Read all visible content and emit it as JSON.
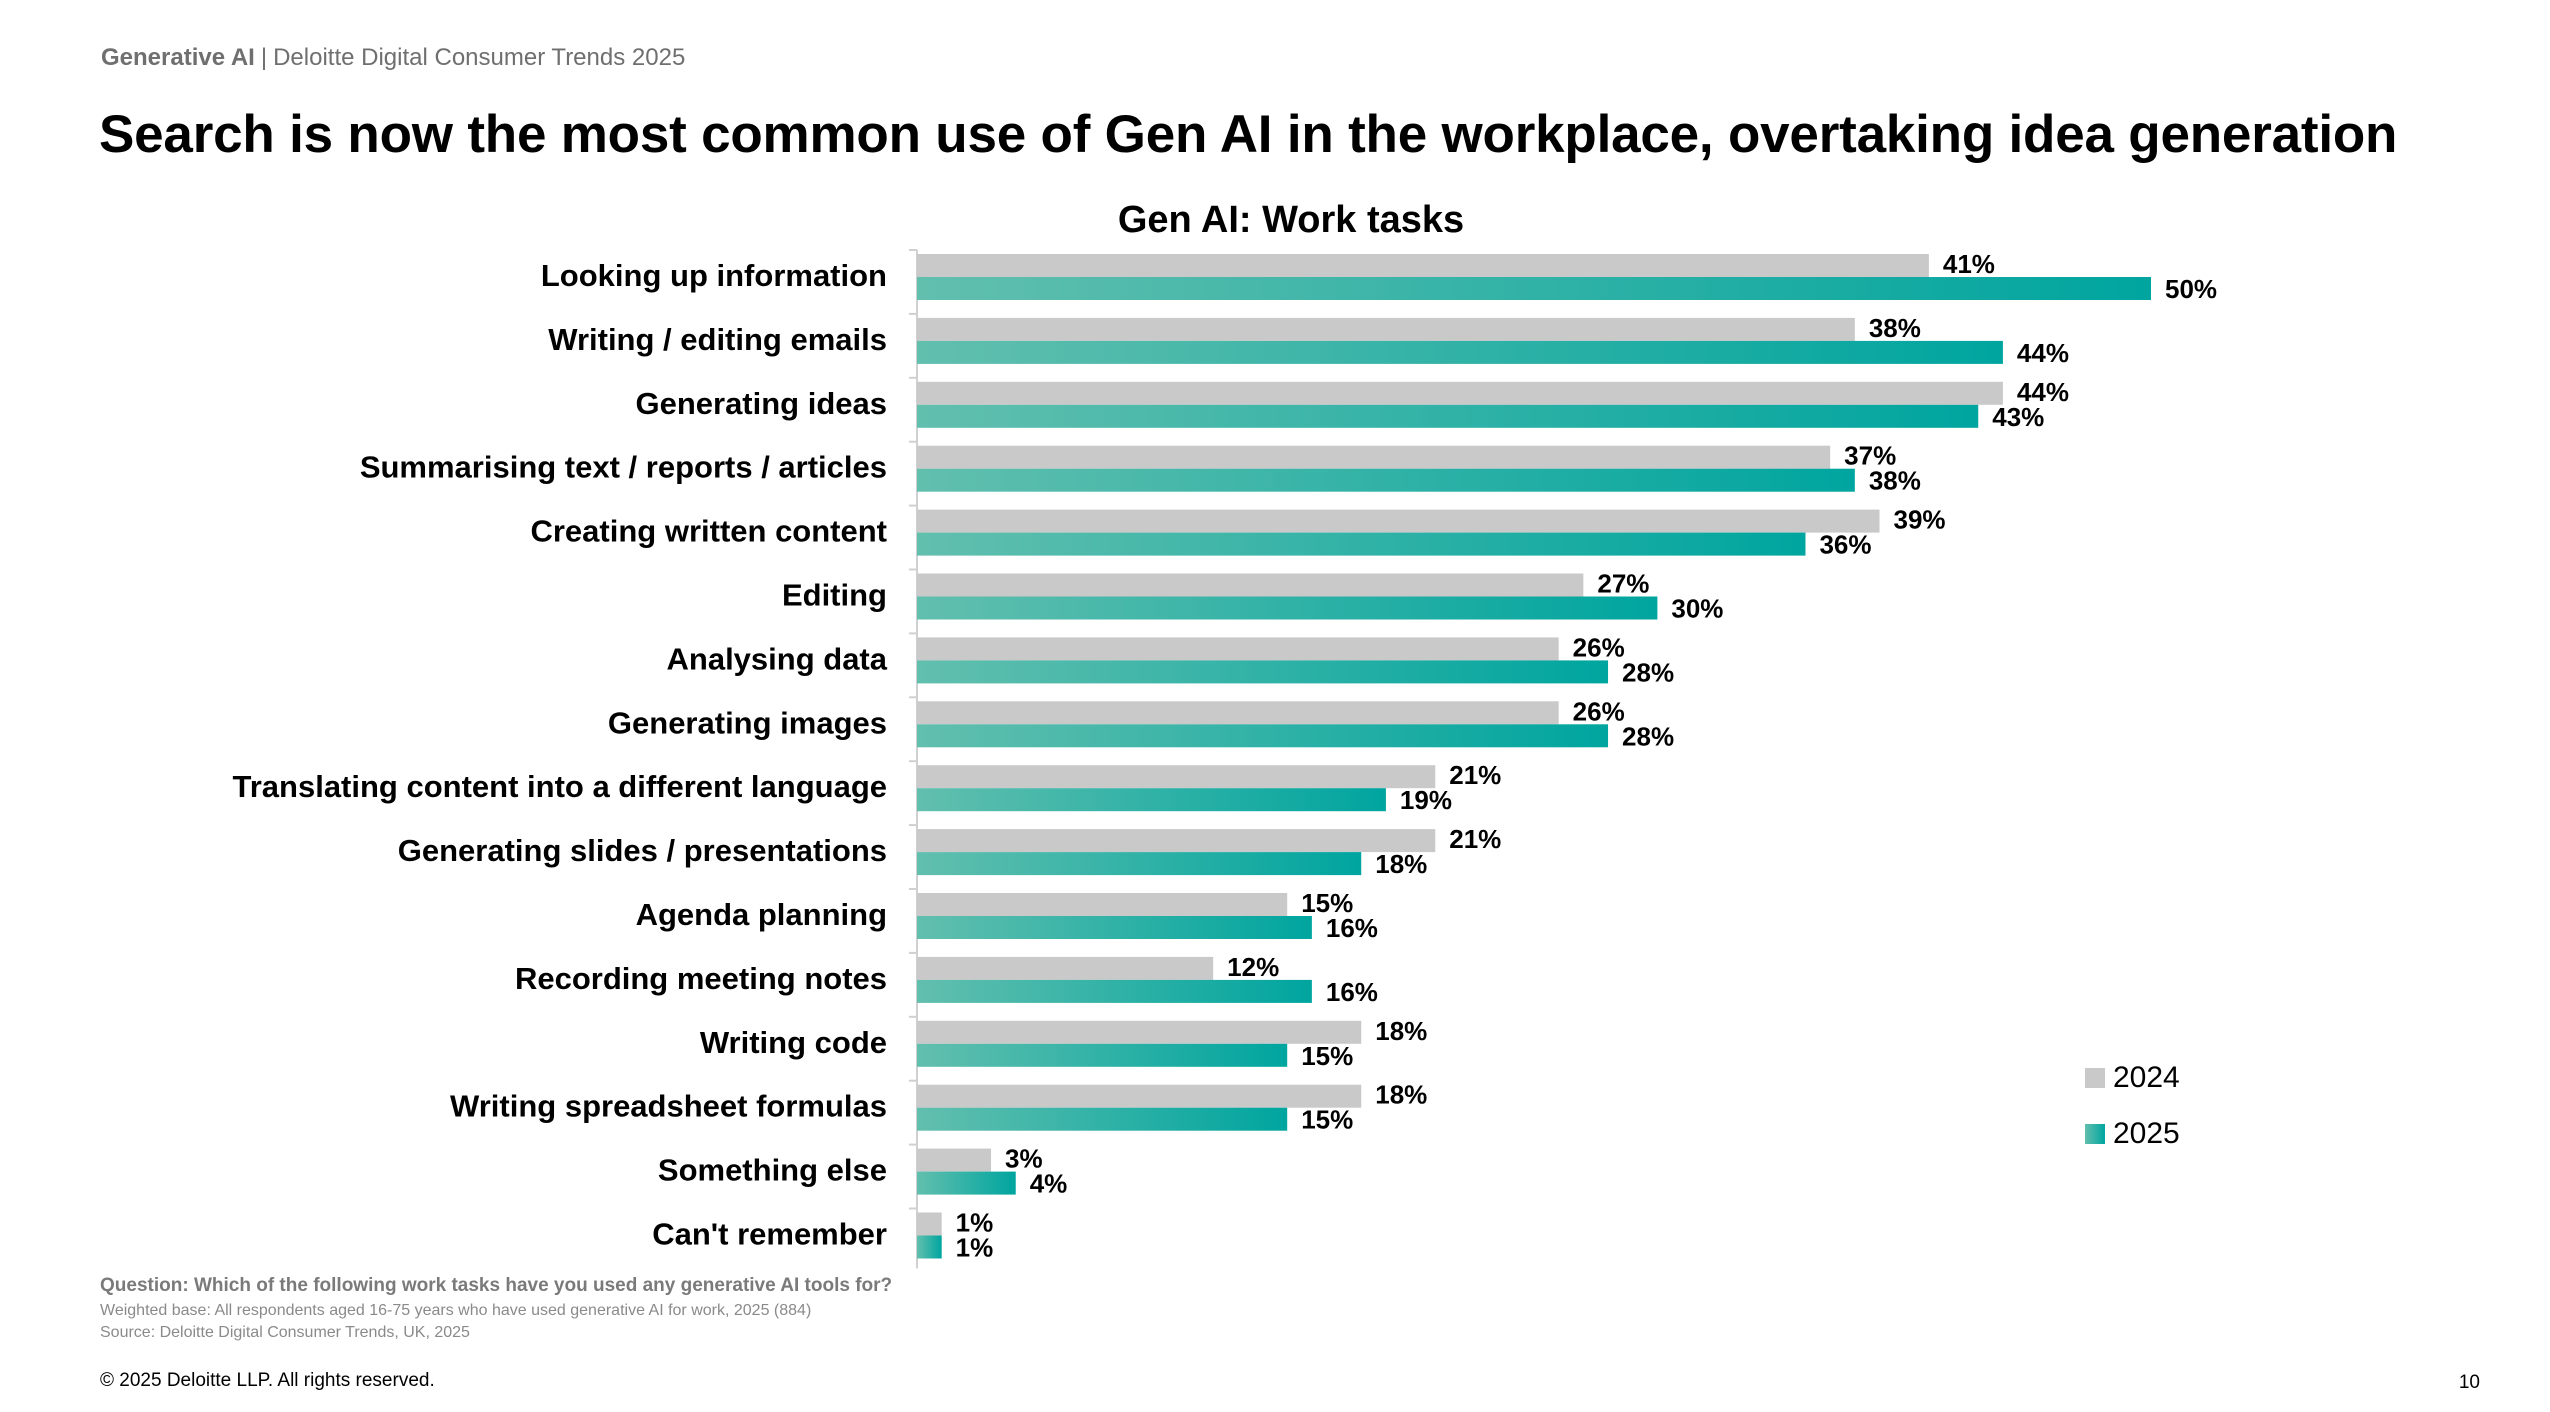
{
  "header": {
    "topic": "Generative AI",
    "separator": "|",
    "publication": "Deloitte Digital Consumer Trends 2025",
    "headline": "Search is now the most common use of Gen AI in the workplace, overtaking idea generation"
  },
  "chart_data": {
    "type": "bar",
    "orientation": "horizontal",
    "title": "Gen AI: Work tasks",
    "categories": [
      "Looking up information",
      "Writing / editing emails",
      "Generating ideas",
      "Summarising text / reports / articles",
      "Creating written content",
      "Editing",
      "Analysing data",
      "Generating images",
      "Translating content into a different language",
      "Generating slides / presentations",
      "Agenda planning",
      "Recording meeting notes",
      "Writing code",
      "Writing spreadsheet formulas",
      "Something else",
      "Can't remember"
    ],
    "series": [
      {
        "name": "2024",
        "color": "#c9c9c9",
        "values": [
          41,
          38,
          44,
          37,
          39,
          27,
          26,
          26,
          21,
          21,
          15,
          12,
          18,
          18,
          3,
          1
        ]
      },
      {
        "name": "2025",
        "color": "#00a59f",
        "gradient_start": "#62bfae",
        "values": [
          50,
          44,
          43,
          38,
          36,
          30,
          28,
          28,
          19,
          18,
          16,
          16,
          15,
          15,
          4,
          1
        ]
      }
    ],
    "value_suffix": "%",
    "xlim": [
      0,
      50
    ],
    "xlabel": "",
    "ylabel": "",
    "grid": false,
    "legend_position": "bottom-right"
  },
  "footer": {
    "question": "Question: Which of the following work tasks have you used any generative AI tools for?",
    "base": "Weighted base: All respondents aged 16-75 years who have used generative AI for work, 2025 (884)",
    "source": "Source: Deloitte Digital Consumer Trends, UK, 2025",
    "copyright": "© 2025 Deloitte LLP. All rights reserved.",
    "page_number": "10"
  }
}
